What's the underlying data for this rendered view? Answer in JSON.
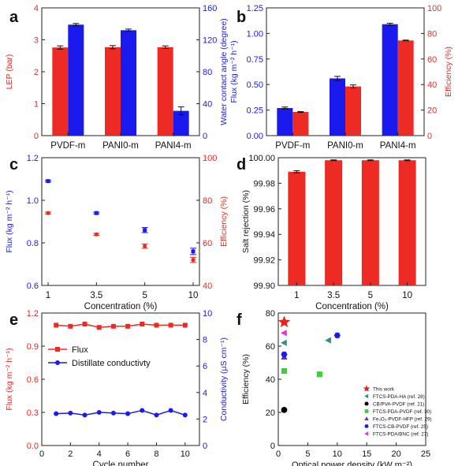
{
  "colors": {
    "red": "#ee2a24",
    "blue": "#1a1aee",
    "black": "#111111",
    "axis": "#222222"
  },
  "chart_data": [
    {
      "panel": "a",
      "type": "bar",
      "categories": [
        "PVDF-m",
        "PANI0-m",
        "PANI4-m"
      ],
      "ylabel": "LEP (bar)",
      "y2label": "Water contact angle (degree)",
      "ylim": [
        0,
        4
      ],
      "y2lim": [
        0,
        160
      ],
      "yticks": [
        "0",
        "1",
        "2",
        "3",
        "4"
      ],
      "y2ticks": [
        "0",
        "40",
        "80",
        "120",
        "160"
      ],
      "series": [
        {
          "axis": "left",
          "color": "red",
          "values": [
            2.76,
            2.77,
            2.77
          ],
          "errors": [
            0.05,
            0.05,
            0.04
          ]
        },
        {
          "axis": "right",
          "color": "blue",
          "values": [
            139,
            132,
            31
          ],
          "errors": [
            1.5,
            1.5,
            5
          ]
        }
      ]
    },
    {
      "panel": "b",
      "type": "bar",
      "categories": [
        "PVDF-m",
        "PANI0-m",
        "PANI4-m"
      ],
      "ylabel": "Flux (kg m⁻² h⁻¹)",
      "y2label": "Efficiency (%)",
      "ylim": [
        0,
        1.25
      ],
      "y2lim": [
        0,
        100
      ],
      "yticks": [
        "0.00",
        "0.25",
        "0.50",
        "0.75",
        "1.00",
        "1.25"
      ],
      "y2ticks": [
        "0",
        "20",
        "40",
        "60",
        "80",
        "100"
      ],
      "series": [
        {
          "axis": "left",
          "color": "blue",
          "values": [
            0.27,
            0.56,
            1.09
          ],
          "errors": [
            0.01,
            0.02,
            0.01
          ]
        },
        {
          "axis": "right",
          "color": "red",
          "values": [
            18.5,
            38.5,
            74.5
          ],
          "errors": [
            0.3,
            1.2,
            0.3
          ]
        }
      ]
    },
    {
      "panel": "c",
      "type": "scatter",
      "categories": [
        "1",
        "3.5",
        "5",
        "10"
      ],
      "xlabel": "Concentration (%)",
      "ylabel": "Flux (kg m⁻² h⁻¹)",
      "y2label": "Efficiency (%)",
      "ylim": [
        0.6,
        1.2
      ],
      "y2lim": [
        40,
        100
      ],
      "yticks": [
        "0.6",
        "0.8",
        "1.0",
        "1.2"
      ],
      "y2ticks": [
        "40",
        "60",
        "80",
        "100"
      ],
      "series": [
        {
          "axis": "left",
          "color": "blue",
          "values": [
            1.09,
            0.94,
            0.86,
            0.76
          ],
          "errors": [
            0.004,
            0.004,
            0.012,
            0.015
          ]
        },
        {
          "axis": "right",
          "color": "red",
          "values": [
            74,
            64,
            58.5,
            52
          ],
          "errors": [
            0.5,
            0.5,
            1,
            1.2
          ]
        }
      ]
    },
    {
      "panel": "d",
      "type": "bar",
      "categories": [
        "1",
        "3.5",
        "5",
        "10"
      ],
      "xlabel": "Concentration (%)",
      "ylabel": "Salt rejection (%)",
      "ylim": [
        99.9,
        100.0
      ],
      "yticks": [
        "99.90",
        "99.92",
        "99.94",
        "99.96",
        "99.98",
        "100.00"
      ],
      "series": [
        {
          "axis": "left",
          "color": "red",
          "values": [
            99.989,
            99.998,
            99.998,
            99.998
          ],
          "errors": [
            0.0008,
            0.0003,
            0.0003,
            0.0003
          ]
        }
      ]
    },
    {
      "panel": "e",
      "type": "line",
      "x": [
        1,
        2,
        3,
        4,
        5,
        6,
        7,
        8,
        9,
        10
      ],
      "xlabel": "Cycle number",
      "ylabel": "Flux (kg m⁻² h⁻¹)",
      "y2label": "Conductivity (μS cm⁻¹)",
      "xlim": [
        0,
        11
      ],
      "ylim": [
        0,
        1.2
      ],
      "y2lim": [
        0,
        10
      ],
      "xticks": [
        "0",
        "2",
        "4",
        "6",
        "8",
        "10"
      ],
      "yticks": [
        "0.0",
        "0.3",
        "0.6",
        "0.9",
        "1.2"
      ],
      "y2ticks": [
        "0",
        "2",
        "4",
        "6",
        "8",
        "10"
      ],
      "legend_position": "center-right",
      "series": [
        {
          "name": "Flux",
          "axis": "left",
          "color": "red",
          "marker": "square",
          "values": [
            1.09,
            1.08,
            1.1,
            1.07,
            1.08,
            1.08,
            1.1,
            1.09,
            1.09,
            1.09
          ]
        },
        {
          "name": "Distillate conductivty",
          "axis": "right",
          "color": "blue",
          "marker": "circle",
          "values": [
            2.4,
            2.45,
            2.3,
            2.5,
            2.45,
            2.4,
            2.65,
            2.3,
            2.65,
            2.3
          ]
        }
      ]
    },
    {
      "panel": "f",
      "type": "scatter",
      "xlabel": "Optical power density (kW m⁻²)",
      "ylabel": "Efficiency (%)",
      "xlim": [
        0,
        25
      ],
      "ylim": [
        0,
        80
      ],
      "xticks": [
        "0",
        "5",
        "10",
        "15",
        "20",
        "25"
      ],
      "yticks": [
        "0",
        "20",
        "40",
        "60",
        "80"
      ],
      "legend_position": "lower-right",
      "points": [
        {
          "label": "This work",
          "marker": "star",
          "color": "#e8231d",
          "points": [
            [
              1,
              74.5
            ]
          ]
        },
        {
          "label": "FTCS-PDA-HA (ref. 28)",
          "marker": "tri-left",
          "color": "#2f8f80",
          "points": [
            [
              1,
              62
            ],
            [
              8.5,
              63.5
            ]
          ]
        },
        {
          "label": "CB/PVA-PVDF (ref. 21)",
          "marker": "circle",
          "color": "#000000",
          "points": [
            [
              1,
              21.5
            ]
          ]
        },
        {
          "label": "FTCS-PDA-PVDF (ref. 30)",
          "marker": "square",
          "color": "#33d433",
          "points": [
            [
              1,
              45
            ],
            [
              7,
              43
            ]
          ]
        },
        {
          "label": "Fe₃O₄-PVDF-HFP (ref. 29)",
          "marker": "triangle",
          "color": "#7030a0",
          "points": [
            [
              1,
              53.5
            ]
          ]
        },
        {
          "label": "FTCS-CB-PVDF (ref. 25)",
          "marker": "hex",
          "color": "#1a1aee",
          "points": [
            [
              1,
              55
            ],
            [
              10,
              66.5
            ]
          ]
        },
        {
          "label": "FTCS-PDA/BNC (ref. 27)",
          "marker": "tri-left",
          "color": "#e535d6",
          "points": [
            [
              1,
              68
            ]
          ]
        }
      ]
    }
  ],
  "panels": [
    {
      "letter": "a"
    },
    {
      "letter": "b"
    },
    {
      "letter": "c"
    },
    {
      "letter": "d"
    },
    {
      "letter": "e"
    },
    {
      "letter": "f"
    }
  ]
}
